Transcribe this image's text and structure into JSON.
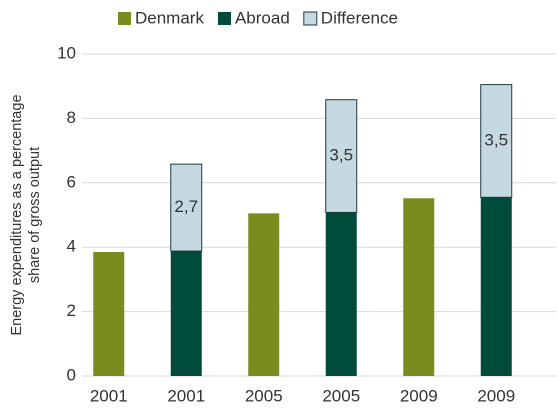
{
  "chart_data": {
    "type": "bar",
    "stacked": true,
    "categories": [
      "2001",
      "2001",
      "2005",
      "2005",
      "2009",
      "2009"
    ],
    "y_label": [
      "Energy expenditures as a percentage",
      "share of gross output"
    ],
    "series": [
      {
        "name": "Denmark",
        "color": "#7a8c1e",
        "values": [
          3.85,
          null,
          5.05,
          null,
          5.52,
          null
        ]
      },
      {
        "name": "Abroad",
        "color": "#004b3a",
        "values": [
          null,
          3.88,
          null,
          5.08,
          null,
          5.55
        ]
      },
      {
        "name": "Difference",
        "color": "#c5d9e2",
        "values": [
          null,
          2.7,
          null,
          3.5,
          null,
          3.5
        ],
        "value_labels": [
          null,
          "2,7",
          null,
          "3,5",
          null,
          "3,5"
        ]
      }
    ],
    "ylim": [
      0,
      10
    ],
    "yticks": [
      0,
      2,
      4,
      6,
      8,
      10
    ],
    "grid": true,
    "legend": "top"
  }
}
